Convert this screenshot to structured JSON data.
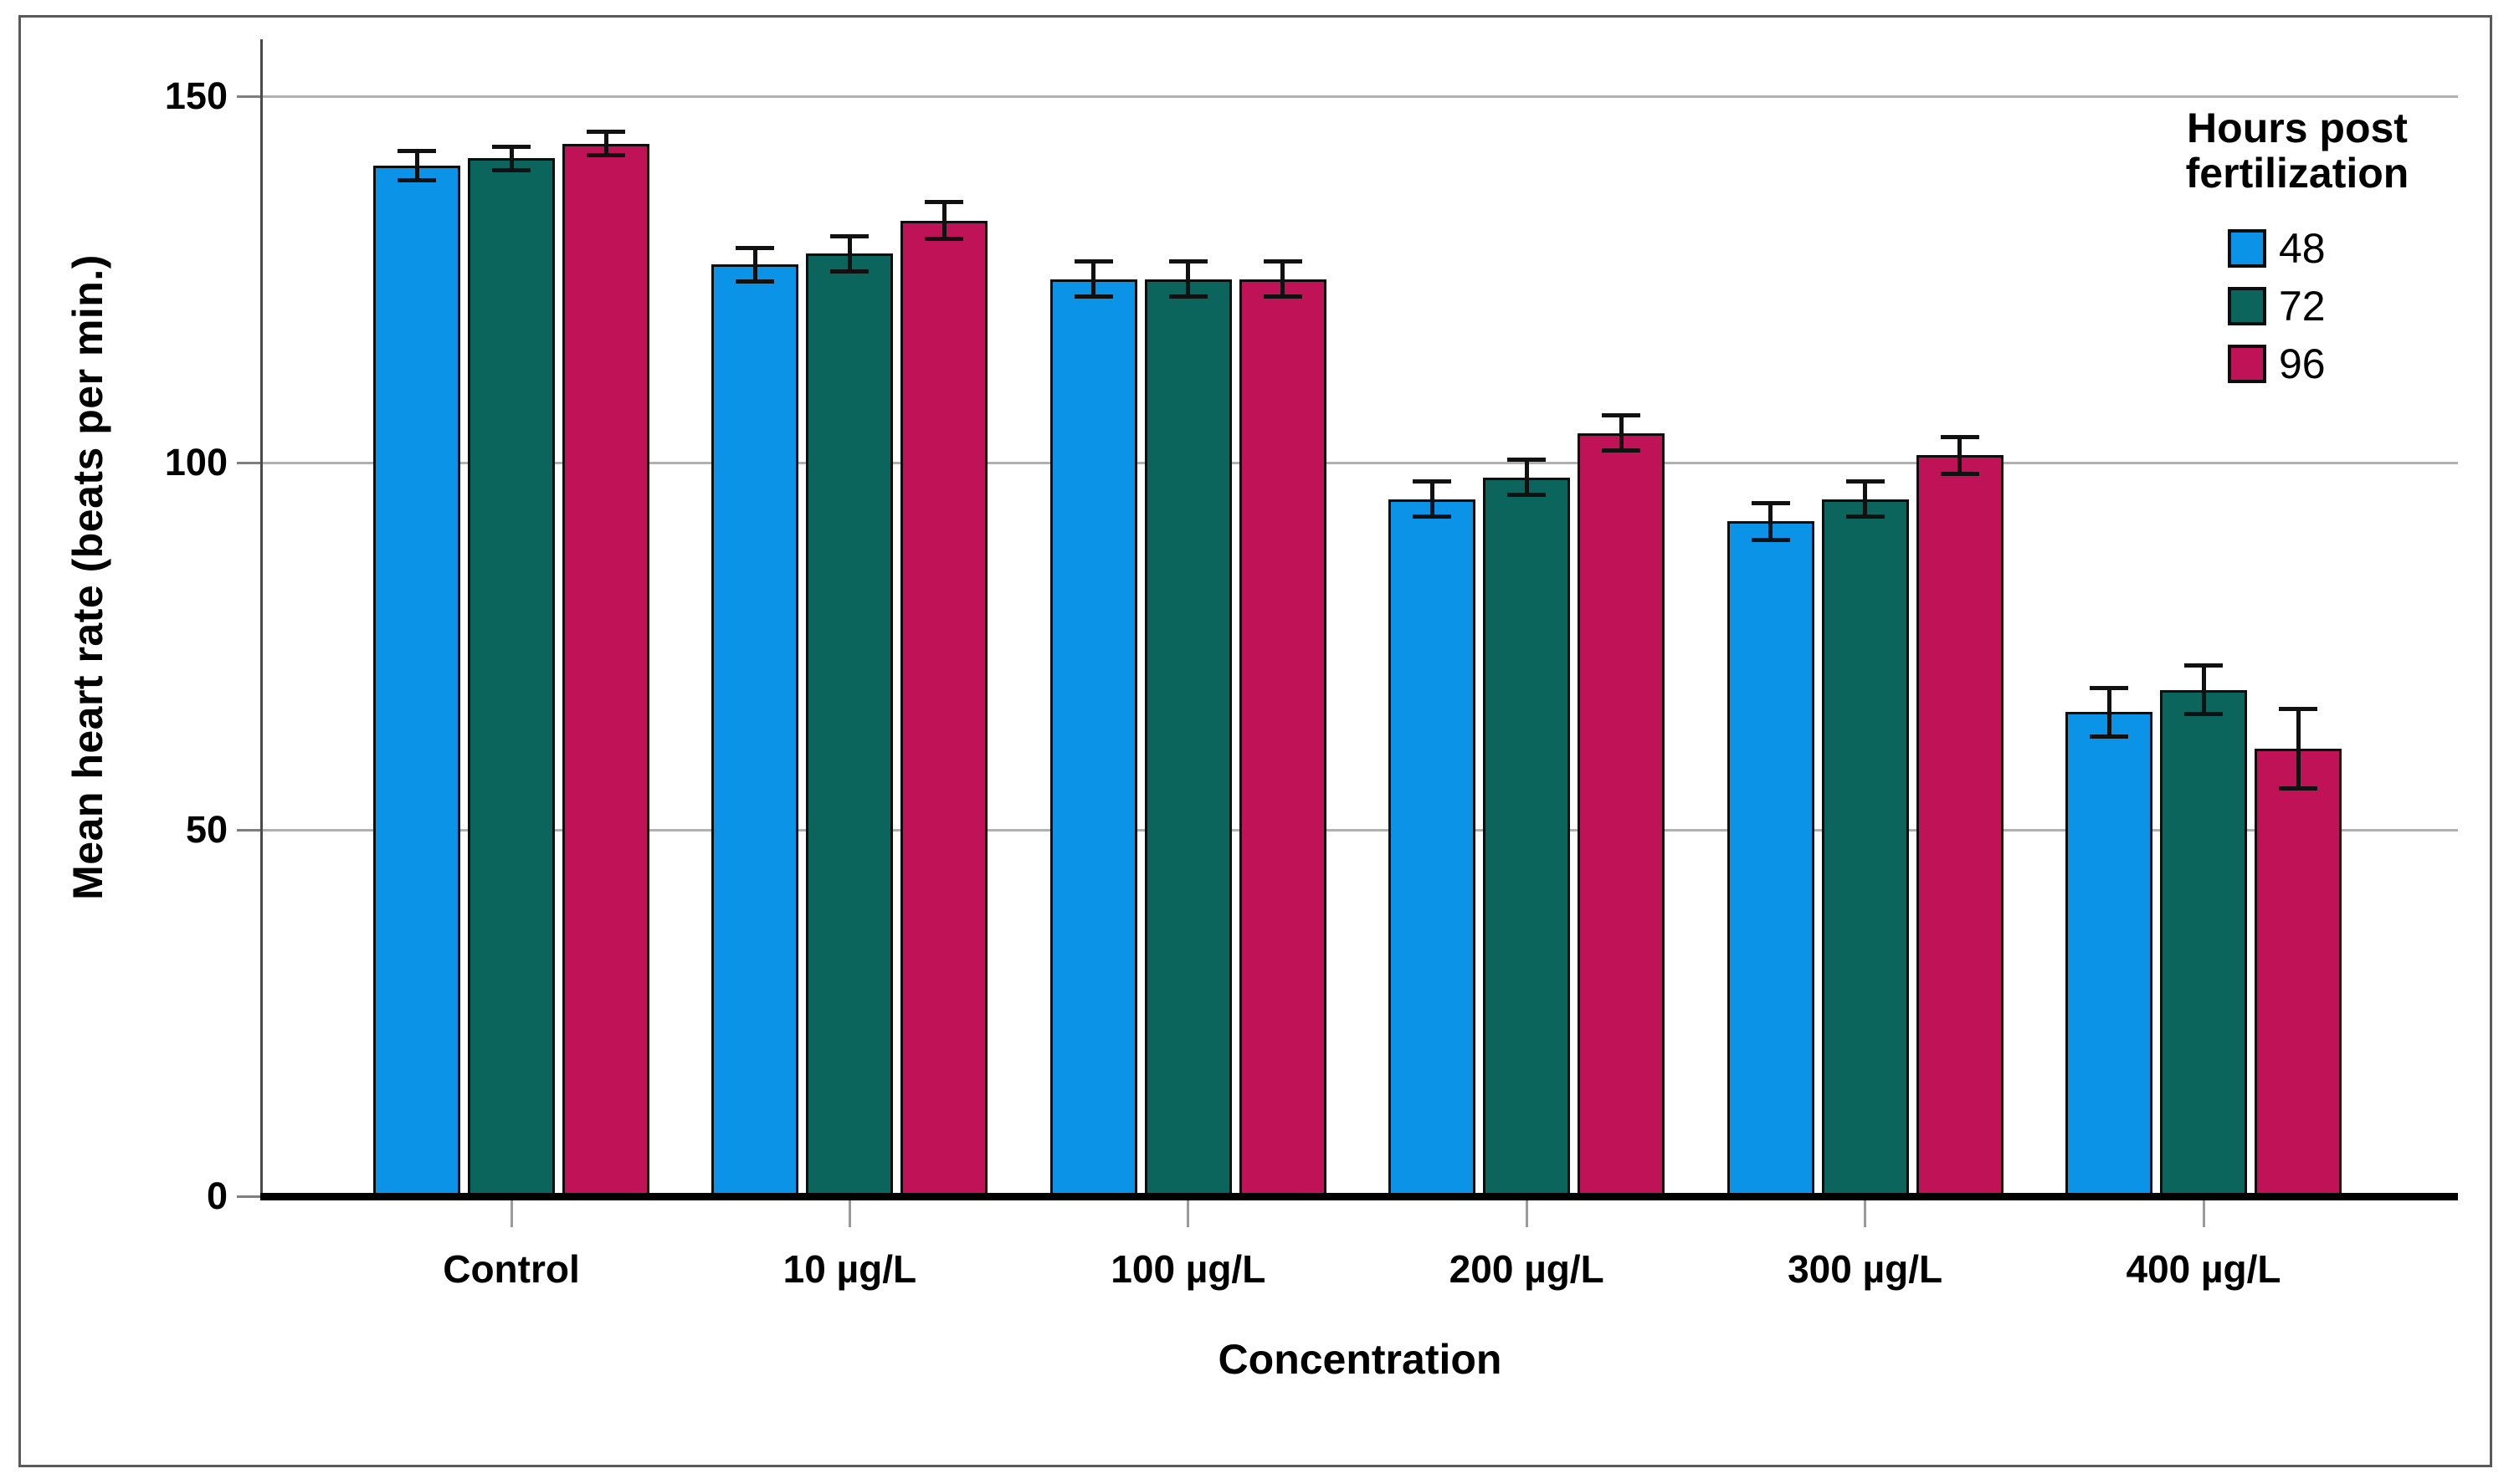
{
  "chart_data": {
    "type": "bar",
    "title": "",
    "xlabel": "Concentration",
    "ylabel": "Mean heart rate (beats per min.)",
    "categories": [
      "Control",
      "10 µg/L",
      "100 µg/L",
      "200 µg/L",
      "300 µg/L",
      "400 µg/L"
    ],
    "series": [
      {
        "name": "48",
        "color": "#0b93e8",
        "values": [
          140.5,
          127,
          125,
          95,
          92,
          66
        ],
        "errors": [
          2.0,
          2.3,
          2.4,
          2.4,
          2.5,
          3.3
        ]
      },
      {
        "name": "72",
        "color": "#0b655d",
        "values": [
          141.5,
          128.5,
          125,
          98,
          95,
          69
        ],
        "errors": [
          1.6,
          2.4,
          2.4,
          2.4,
          2.4,
          3.3
        ]
      },
      {
        "name": "96",
        "color": "#c01357",
        "values": [
          143.5,
          133,
          125,
          104,
          101,
          61
        ],
        "errors": [
          1.6,
          2.5,
          2.4,
          2.4,
          2.5,
          5.4
        ]
      }
    ],
    "yticks": [
      0,
      50,
      100,
      150
    ],
    "ylim": [
      0,
      157
    ],
    "grid": true,
    "legend_title": "Hours post fertilization",
    "legend_position": "top-right",
    "error_bars": true
  },
  "style_colors": {
    "bar_border": "#0d0d0d",
    "grid": "#b0b0b0",
    "axis_line": "#4a4a4a",
    "baseline": "#000000",
    "frame_border": "#5a5a5a",
    "background": "#ffffff"
  }
}
